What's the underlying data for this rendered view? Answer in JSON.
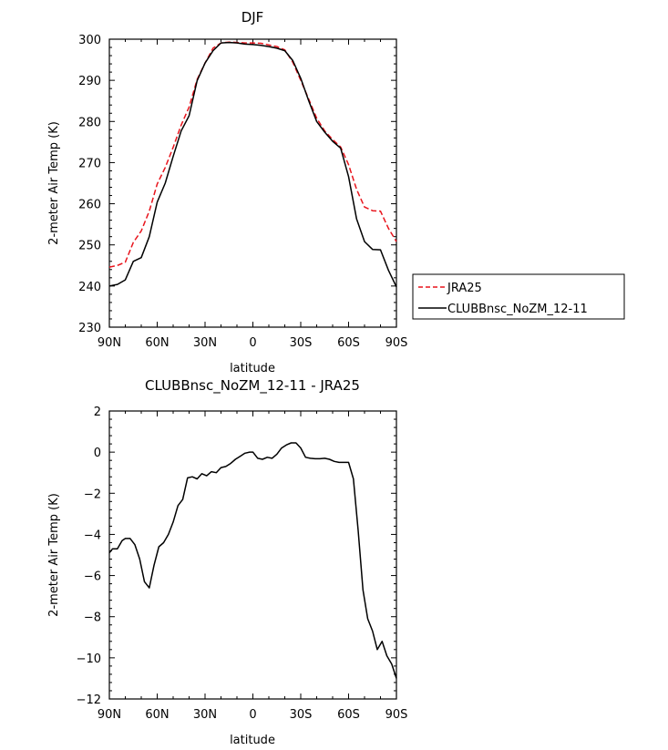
{
  "chart_data": [
    {
      "type": "line",
      "title": "DJF",
      "xlabel": "latitude",
      "ylabel": "2-meter Air Temp (K)",
      "xlim": [
        90,
        -90
      ],
      "ylim": [
        230,
        300
      ],
      "xticks": [
        90,
        60,
        30,
        0,
        -30,
        -60,
        -90
      ],
      "xtick_labels": [
        "90N",
        "60N",
        "30N",
        "0",
        "30S",
        "60S",
        "90S"
      ],
      "yticks": [
        230,
        240,
        250,
        260,
        270,
        280,
        290,
        300
      ],
      "ytick_labels": [
        "230",
        "240",
        "250",
        "260",
        "270",
        "280",
        "290",
        "300"
      ],
      "legend": "outside-right",
      "series": [
        {
          "name": "JRA25",
          "color": "#e8141c",
          "dash": "dashed",
          "x": [
            90,
            85,
            80,
            75,
            70,
            65,
            60,
            55,
            50,
            45,
            40,
            35,
            30,
            25,
            20,
            15,
            10,
            5,
            0,
            -5,
            -10,
            -15,
            -20,
            -25,
            -30,
            -35,
            -40,
            -45,
            -50,
            -55,
            -60,
            -65,
            -70,
            -75,
            -80,
            -85,
            -90
          ],
          "y": [
            244.6,
            245.0,
            245.8,
            250.6,
            253.4,
            258.2,
            264.8,
            268.8,
            273.7,
            279.1,
            283.5,
            290.2,
            294.2,
            297.8,
            299.1,
            299.3,
            299.2,
            299.1,
            299.1,
            299.0,
            298.6,
            298.2,
            297.4,
            294.4,
            290.0,
            285.4,
            280.8,
            277.7,
            275.6,
            273.8,
            269.5,
            263.5,
            259.2,
            258.3,
            258.2,
            254.0,
            250.8
          ]
        },
        {
          "name": "CLUBBnsc_NoZM_12-11",
          "color": "#000000",
          "dash": "solid",
          "x": [
            90,
            85,
            80,
            75,
            70,
            65,
            60,
            55,
            50,
            45,
            40,
            35,
            30,
            25,
            20,
            15,
            10,
            5,
            0,
            -5,
            -10,
            -15,
            -20,
            -25,
            -30,
            -35,
            -40,
            -45,
            -50,
            -55,
            -60,
            -65,
            -70,
            -75,
            -80,
            -85,
            -90
          ],
          "y": [
            240.0,
            240.4,
            241.5,
            246.0,
            246.9,
            252.0,
            260.4,
            265.0,
            271.5,
            277.7,
            281.4,
            289.9,
            294.2,
            297.2,
            299.1,
            299.2,
            299.1,
            298.8,
            298.7,
            298.5,
            298.2,
            297.8,
            297.2,
            294.8,
            290.5,
            285.0,
            280.0,
            277.4,
            275.2,
            273.5,
            266.6,
            256.3,
            250.8,
            248.9,
            248.8,
            243.8,
            239.8
          ]
        }
      ]
    },
    {
      "type": "line",
      "title": "CLUBBnsc_NoZM_12-11 - JRA25",
      "xlabel": "latitude",
      "ylabel": "2-meter Air Temp (K)",
      "xlim": [
        90,
        -90
      ],
      "ylim": [
        -12,
        2
      ],
      "xticks": [
        90,
        60,
        30,
        0,
        -30,
        -60,
        -90
      ],
      "xtick_labels": [
        "90N",
        "60N",
        "30N",
        "0",
        "30S",
        "60S",
        "90S"
      ],
      "yticks": [
        -12,
        -10,
        -8,
        -6,
        -4,
        -2,
        0,
        2
      ],
      "ytick_labels": [
        "−12",
        "−10",
        "−8",
        "−6",
        "−4",
        "−2",
        "0",
        "2"
      ],
      "series": [
        {
          "color": "#000000",
          "dash": "solid",
          "x": [
            90,
            88,
            85,
            82,
            80,
            77,
            74,
            71,
            68,
            65,
            62,
            59,
            56,
            53,
            50,
            47,
            44,
            41,
            38,
            35,
            32,
            29,
            26,
            23,
            20,
            17,
            14,
            11,
            8,
            5,
            2,
            0,
            -3,
            -6,
            -9,
            -12,
            -15,
            -18,
            -21,
            -24,
            -27,
            -30,
            -33,
            -36,
            -39,
            -42,
            -45,
            -48,
            -51,
            -54,
            -57,
            -60,
            -63,
            -66,
            -69,
            -72,
            -75,
            -78,
            -81,
            -84,
            -87,
            -90
          ],
          "y": [
            -4.9,
            -4.7,
            -4.7,
            -4.3,
            -4.2,
            -4.2,
            -4.5,
            -5.2,
            -6.3,
            -6.6,
            -5.5,
            -4.6,
            -4.4,
            -4.0,
            -3.4,
            -2.6,
            -2.3,
            -1.25,
            -1.2,
            -1.3,
            -1.05,
            -1.15,
            -0.95,
            -1.0,
            -0.75,
            -0.7,
            -0.55,
            -0.35,
            -0.2,
            -0.05,
            0.0,
            0.0,
            -0.3,
            -0.35,
            -0.25,
            -0.3,
            -0.1,
            0.2,
            0.35,
            0.45,
            0.45,
            0.2,
            -0.25,
            -0.3,
            -0.32,
            -0.32,
            -0.3,
            -0.35,
            -0.45,
            -0.5,
            -0.5,
            -0.5,
            -1.3,
            -3.8,
            -6.7,
            -8.1,
            -8.7,
            -9.6,
            -9.2,
            -9.9,
            -10.3,
            -11.0
          ]
        }
      ]
    }
  ]
}
